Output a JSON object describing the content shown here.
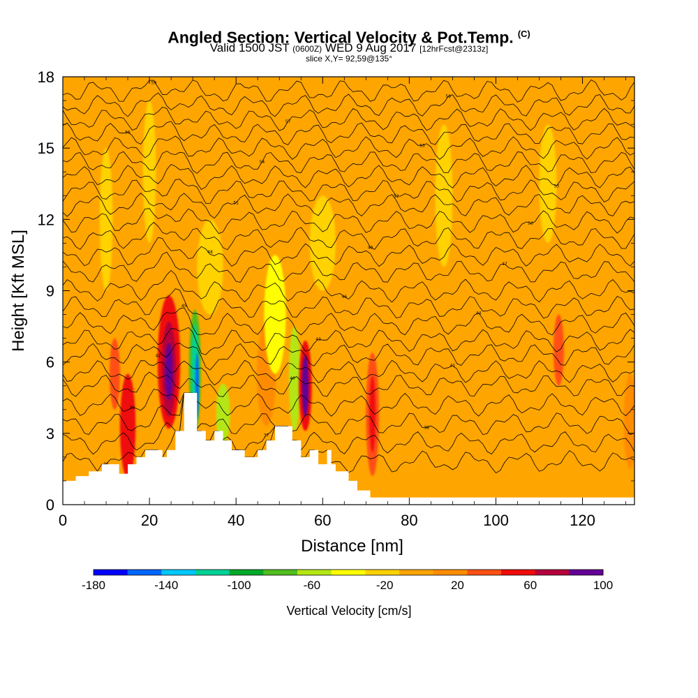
{
  "chart_data": {
    "type": "heatmap",
    "title": "Angled Section: Vertical Velocity & Pot.Temp.",
    "title_sup": "(C)",
    "subtitle": {
      "valid": "Valid 1500 JST",
      "utc": "(0600Z)",
      "date": "WED 9 Aug 2017",
      "forecast": "[12hrFcst@2313z]"
    },
    "slice_label": "slice X,Y= 92,59@135°",
    "xlabel": "Distance [nm]",
    "ylabel": "Height [Kft MSL]",
    "xlim": [
      0,
      132
    ],
    "ylim": [
      0,
      18
    ],
    "x_ticks": [
      "0",
      "20",
      "40",
      "60",
      "80",
      "100",
      "120"
    ],
    "y_ticks": [
      "0",
      "3",
      "6",
      "9",
      "12",
      "15",
      "18"
    ],
    "background_color": "#ffa500",
    "colorbar": {
      "label": "Vertical Velocity [cm/s]",
      "tick_labels": [
        "-180",
        "-140",
        "-100",
        "-60",
        "-20",
        "20",
        "60",
        "100"
      ],
      "colors": [
        "#0000ff",
        "#0066ff",
        "#00c8ff",
        "#00d296",
        "#00aa28",
        "#50be1e",
        "#b4e614",
        "#ffff00",
        "#ffd200",
        "#ffa500",
        "#ff8c00",
        "#ff5014",
        "#f00a0a",
        "#b4003c",
        "#640096"
      ]
    },
    "terrain": [
      [
        0,
        1
      ],
      [
        3,
        1
      ],
      [
        3,
        1.2
      ],
      [
        6,
        1.2
      ],
      [
        6,
        1.4
      ],
      [
        9,
        1.4
      ],
      [
        9,
        1.7
      ],
      [
        13,
        1.7
      ],
      [
        13,
        1.3
      ],
      [
        15,
        1.3
      ],
      [
        15,
        1.7
      ],
      [
        17,
        1.7
      ],
      [
        17,
        2.0
      ],
      [
        19,
        2.0
      ],
      [
        19,
        2.3
      ],
      [
        23,
        2.3
      ],
      [
        23,
        2.0
      ],
      [
        24,
        2.0
      ],
      [
        24,
        2.3
      ],
      [
        26,
        2.3
      ],
      [
        26,
        3.1
      ],
      [
        28,
        3.1
      ],
      [
        28,
        4.7
      ],
      [
        31,
        4.7
      ],
      [
        31,
        3.1
      ],
      [
        33,
        3.1
      ],
      [
        33,
        2.7
      ],
      [
        35,
        2.7
      ],
      [
        35,
        3.1
      ],
      [
        37,
        3.1
      ],
      [
        37,
        2.7
      ],
      [
        39,
        2.7
      ],
      [
        39,
        2.3
      ],
      [
        42,
        2.3
      ],
      [
        42,
        2.0
      ],
      [
        45,
        2.0
      ],
      [
        45,
        2.3
      ],
      [
        47,
        2.3
      ],
      [
        47,
        2.7
      ],
      [
        49,
        2.7
      ],
      [
        49,
        3.3
      ],
      [
        53,
        3.3
      ],
      [
        53,
        2.7
      ],
      [
        55,
        2.7
      ],
      [
        55,
        2.0
      ],
      [
        57,
        2.0
      ],
      [
        57,
        2.3
      ],
      [
        59,
        2.3
      ],
      [
        59,
        1.7
      ],
      [
        61,
        1.7
      ],
      [
        61,
        2.3
      ],
      [
        62,
        2.3
      ],
      [
        62,
        1.7
      ],
      [
        63,
        1.7
      ],
      [
        63,
        1.4
      ],
      [
        66,
        1.4
      ],
      [
        66,
        1.0
      ],
      [
        68,
        1.0
      ],
      [
        68,
        0.6
      ],
      [
        71,
        0.6
      ],
      [
        71,
        0.3
      ],
      [
        132,
        0.3
      ]
    ],
    "velocity_cells": [
      {
        "x": 15,
        "y": 3.3,
        "rx": 1.8,
        "ry": 2.2,
        "value": 60
      },
      {
        "x": 12,
        "y": 5.5,
        "rx": 1.2,
        "ry": 1.5,
        "value": 40
      },
      {
        "x": 24.5,
        "y": 6.0,
        "rx": 2.6,
        "ry": 2.8,
        "value": 60
      },
      {
        "x": 24.5,
        "y": 5.7,
        "rx": 1.6,
        "ry": 2.0,
        "value": 80
      },
      {
        "x": 24.5,
        "y": 5.6,
        "rx": 0.9,
        "ry": 1.2,
        "value": 100
      },
      {
        "x": 30.5,
        "y": 5.6,
        "rx": 1.4,
        "ry": 2.6,
        "value": -80
      },
      {
        "x": 30.5,
        "y": 5.6,
        "rx": 0.8,
        "ry": 2.0,
        "value": -120
      },
      {
        "x": 31,
        "y": 5.0,
        "rx": 0.4,
        "ry": 1.4,
        "value": -160
      },
      {
        "x": 37,
        "y": 3.8,
        "rx": 1.6,
        "ry": 1.3,
        "value": -60
      },
      {
        "x": 47,
        "y": 5.5,
        "rx": 2.2,
        "ry": 2.2,
        "value": 30
      },
      {
        "x": 53.5,
        "y": 5.3,
        "rx": 1.3,
        "ry": 2.2,
        "value": -60
      },
      {
        "x": 56,
        "y": 5.0,
        "rx": 1.5,
        "ry": 1.9,
        "value": 60
      },
      {
        "x": 56,
        "y": 5.0,
        "rx": 0.8,
        "ry": 1.3,
        "value": 100
      },
      {
        "x": 71.5,
        "y": 3.8,
        "rx": 1.5,
        "ry": 2.6,
        "value": 40
      },
      {
        "x": 71.5,
        "y": 3.8,
        "rx": 0.7,
        "ry": 1.6,
        "value": 60
      },
      {
        "x": 114.5,
        "y": 6.5,
        "rx": 1.2,
        "ry": 1.5,
        "value": 40
      },
      {
        "x": 131,
        "y": 3.5,
        "rx": 1.5,
        "ry": 2.0,
        "value": 30
      },
      {
        "x": 10,
        "y": 12.0,
        "rx": 1.5,
        "ry": 3.0,
        "value": -20
      },
      {
        "x": 20,
        "y": 14.0,
        "rx": 1.5,
        "ry": 3.0,
        "value": -20
      },
      {
        "x": 34,
        "y": 10.0,
        "rx": 3.0,
        "ry": 2.0,
        "value": -20
      },
      {
        "x": 49,
        "y": 8.0,
        "rx": 2.5,
        "ry": 2.5,
        "value": -30
      },
      {
        "x": 60,
        "y": 11.0,
        "rx": 3.0,
        "ry": 2.0,
        "value": -20
      },
      {
        "x": 88,
        "y": 13.0,
        "rx": 2.0,
        "ry": 3.0,
        "value": -20
      },
      {
        "x": 112,
        "y": 13.5,
        "rx": 2.0,
        "ry": 2.5,
        "value": -20
      }
    ],
    "theta_contours": [
      {
        "base": 1.8,
        "label": "36"
      },
      {
        "base": 2.6,
        "label": "37"
      },
      {
        "base": 3.4,
        "label": "38"
      },
      {
        "base": 4.2,
        "label": "39"
      },
      {
        "base": 5.0,
        "label": "40"
      },
      {
        "base": 5.6,
        "label": "41"
      },
      {
        "base": 6.3,
        "label": "42"
      },
      {
        "base": 6.9,
        "label": "43"
      },
      {
        "base": 7.6,
        "label": "44"
      },
      {
        "base": 8.3,
        "label": "45"
      },
      {
        "base": 9.0,
        "label": "46"
      },
      {
        "base": 9.8,
        "label": "47"
      },
      {
        "base": 10.5,
        "label": "48"
      },
      {
        "base": 11.2,
        "label": "49"
      },
      {
        "base": 11.9,
        "label": "50"
      },
      {
        "base": 12.6,
        "label": "51"
      },
      {
        "base": 13.2,
        "label": "52"
      },
      {
        "base": 13.8,
        "label": "53"
      },
      {
        "base": 14.4,
        "label": "54"
      },
      {
        "base": 15.0,
        "label": "55"
      },
      {
        "base": 15.6,
        "label": "56"
      },
      {
        "base": 16.2,
        "label": "57"
      },
      {
        "base": 16.8,
        "label": "58"
      },
      {
        "base": 17.4,
        "label": "59"
      }
    ]
  }
}
